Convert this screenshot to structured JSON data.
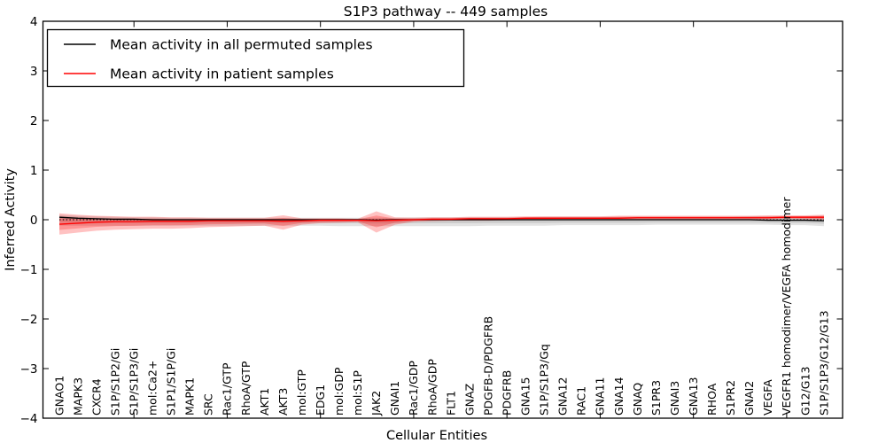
{
  "chart_data": {
    "type": "line",
    "title": "S1P3 pathway -- 449 samples",
    "xlabel": "Cellular Entities",
    "ylabel": "Inferred Activity",
    "ylim": [
      -4,
      4
    ],
    "yticks": [
      -4,
      -3,
      -2,
      -1,
      0,
      1,
      2,
      3,
      4
    ],
    "grid": false,
    "zero_reference_line": 0,
    "categories": [
      "GNAO1",
      "MAPK3",
      "CXCR4",
      "S1P/S1P2/Gi",
      "S1P/S1P3/Gi",
      "mol:Ca2+",
      "S1P1/S1P/Gi",
      "MAPK1",
      "SRC",
      "Rac1/GTP",
      "RhoA/GTP",
      "AKT1",
      "AKT3",
      "mol:GTP",
      "EDG1",
      "mol:GDP",
      "mol:S1P",
      "JAK2",
      "GNAI1",
      "Rac1/GDP",
      "RhoA/GDP",
      "FLT1",
      "GNAZ",
      "PDGFB-D/PDGFRB",
      "PDGFRB",
      "GNA15",
      "S1P/S1P3/Gq",
      "GNA12",
      "RAC1",
      "GNA11",
      "GNA14",
      "GNAQ",
      "S1PR3",
      "GNAI3",
      "GNA13",
      "RHOA",
      "S1PR2",
      "GNAI2",
      "VEGFA",
      "VEGFR1 homodimer/VEGFA homodimer",
      "G12/G13",
      "S1P/S1P3/G12/G13"
    ],
    "series": [
      {
        "name": "Mean activity in all permuted samples",
        "color": "#000000",
        "band_color": "#808080",
        "band_alpha": 0.22,
        "values": [
          0.05,
          0.03,
          0.02,
          0.01,
          0.01,
          0.0,
          0.0,
          0.0,
          0.0,
          0.0,
          0.0,
          0.0,
          0.0,
          0.0,
          0.0,
          0.0,
          0.0,
          -0.01,
          0.0,
          0.0,
          0.0,
          0.0,
          0.0,
          0.0,
          0.0,
          0.0,
          0.0,
          0.0,
          0.0,
          0.0,
          0.0,
          0.0,
          0.0,
          0.0,
          0.0,
          0.0,
          0.0,
          0.0,
          -0.01,
          -0.01,
          -0.01,
          -0.02
        ],
        "band_lo": [
          -0.12,
          -0.12,
          -0.12,
          -0.12,
          -0.12,
          -0.12,
          -0.12,
          -0.12,
          -0.12,
          -0.12,
          -0.12,
          -0.12,
          -0.12,
          -0.12,
          -0.12,
          -0.13,
          -0.13,
          -0.13,
          -0.13,
          -0.13,
          -0.13,
          -0.13,
          -0.13,
          -0.12,
          -0.12,
          -0.12,
          -0.12,
          -0.11,
          -0.11,
          -0.11,
          -0.11,
          -0.11,
          -0.1,
          -0.1,
          -0.1,
          -0.1,
          -0.1,
          -0.1,
          -0.1,
          -0.11,
          -0.11,
          -0.13
        ],
        "band_hi": [
          0.1,
          0.08,
          0.07,
          0.06,
          0.05,
          0.05,
          0.04,
          0.04,
          0.04,
          0.04,
          0.04,
          0.04,
          0.04,
          0.04,
          0.04,
          0.04,
          0.04,
          0.04,
          0.04,
          0.05,
          0.05,
          0.05,
          0.05,
          0.05,
          0.05,
          0.05,
          0.06,
          0.06,
          0.06,
          0.06,
          0.06,
          0.06,
          0.06,
          0.06,
          0.06,
          0.06,
          0.06,
          0.07,
          0.07,
          0.07,
          0.07,
          0.08
        ]
      },
      {
        "name": "Mean activity in patient samples",
        "color": "#ff0000",
        "band_color": "#ff0000",
        "band_alpha": 0.24,
        "values": [
          -0.09,
          -0.07,
          -0.05,
          -0.04,
          -0.04,
          -0.03,
          -0.03,
          -0.03,
          -0.02,
          -0.02,
          -0.02,
          -0.02,
          -0.03,
          -0.02,
          -0.01,
          -0.01,
          -0.01,
          -0.02,
          -0.01,
          0.0,
          0.01,
          0.01,
          0.02,
          0.02,
          0.02,
          0.03,
          0.03,
          0.03,
          0.03,
          0.03,
          0.03,
          0.04,
          0.04,
          0.04,
          0.04,
          0.04,
          0.04,
          0.04,
          0.04,
          0.05,
          0.05,
          0.05
        ],
        "band_lo": [
          -0.3,
          -0.26,
          -0.22,
          -0.2,
          -0.19,
          -0.18,
          -0.18,
          -0.17,
          -0.15,
          -0.14,
          -0.13,
          -0.12,
          -0.2,
          -0.1,
          -0.07,
          -0.06,
          -0.05,
          -0.26,
          -0.1,
          -0.04,
          -0.03,
          -0.02,
          -0.02,
          -0.02,
          -0.01,
          -0.01,
          -0.01,
          0.0,
          0.0,
          0.0,
          0.0,
          0.01,
          0.01,
          0.01,
          0.01,
          0.01,
          0.01,
          0.01,
          0.01,
          0.02,
          0.01,
          0.0
        ],
        "band_hi": [
          0.13,
          0.1,
          0.08,
          0.07,
          0.06,
          0.06,
          0.05,
          0.05,
          0.04,
          0.04,
          0.04,
          0.04,
          0.09,
          0.03,
          0.03,
          0.03,
          0.02,
          0.17,
          0.05,
          0.04,
          0.05,
          0.05,
          0.06,
          0.06,
          0.06,
          0.07,
          0.07,
          0.07,
          0.07,
          0.07,
          0.08,
          0.08,
          0.08,
          0.08,
          0.08,
          0.08,
          0.08,
          0.08,
          0.09,
          0.09,
          0.09,
          0.1
        ]
      }
    ],
    "layout": {
      "legend_position": "upper left",
      "tick_direction": "in",
      "x_major_tick_indices": [
        4,
        9,
        14,
        19,
        24,
        29,
        34,
        39
      ],
      "inner_band_factor": 0.55
    }
  }
}
